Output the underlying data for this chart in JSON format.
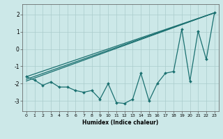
{
  "title": "",
  "xlabel": "Humidex (Indice chaleur)",
  "xlim": [
    -0.5,
    23.5
  ],
  "ylim": [
    -3.6,
    2.6
  ],
  "yticks": [
    -3,
    -2,
    -1,
    0,
    1,
    2
  ],
  "xticks": [
    0,
    1,
    2,
    3,
    4,
    5,
    6,
    7,
    8,
    9,
    10,
    11,
    12,
    13,
    14,
    15,
    16,
    17,
    18,
    19,
    20,
    21,
    22,
    23
  ],
  "bg_color": "#cce8e8",
  "grid_color": "#aacccc",
  "line_color": "#1a7070",
  "line1_x": [
    0,
    1,
    2,
    3,
    4,
    5,
    6,
    7,
    8,
    9,
    10,
    11,
    12,
    13,
    14,
    15,
    16,
    17,
    18,
    19,
    20,
    21,
    22,
    23
  ],
  "line1_y": [
    -1.6,
    -1.8,
    -2.1,
    -1.9,
    -2.2,
    -2.2,
    -2.4,
    -2.5,
    -2.4,
    -2.9,
    -2.0,
    -3.1,
    -3.15,
    -2.9,
    -1.4,
    -3.0,
    -2.0,
    -1.4,
    -1.3,
    1.15,
    -1.85,
    1.05,
    -0.6,
    2.1
  ],
  "line2_x": [
    0,
    23
  ],
  "line2_y": [
    -1.6,
    2.1
  ],
  "line3_x": [
    0,
    23
  ],
  "line3_y": [
    -1.75,
    2.1
  ],
  "line4_x": [
    0,
    23
  ],
  "line4_y": [
    -1.85,
    2.1
  ]
}
